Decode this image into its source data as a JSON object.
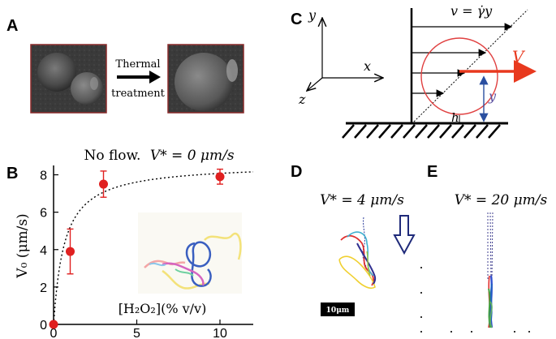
{
  "panels": {
    "a": "A",
    "b": "B",
    "c": "C",
    "d": "D",
    "e": "E"
  },
  "panel_a": {
    "arrow_label_1": "Thermal",
    "arrow_label_2": "treatment"
  },
  "panel_b": {
    "title_text": "No flow.",
    "title_eq": "V* = 0 μm/s",
    "ylabel": "V₀ (μm/s)",
    "xlabel": "[H₂O₂](% v/v)"
  },
  "panel_c": {
    "axis_y": "y",
    "axis_x": "x",
    "axis_z": "z",
    "flow_eq": "v = γ̇y",
    "velocity": "V",
    "height_right": "y",
    "height_gap": "h"
  },
  "panel_d": {
    "title": "V* = 4 μm/s",
    "scalebar": "10μm"
  },
  "panel_e": {
    "title": "V* = 20 μm/s"
  },
  "chart_data": {
    "type": "scatter",
    "title": "No flow. V* = 0 μm/s",
    "xlabel": "[H₂O₂](% v/v)",
    "ylabel": "V₀ (μm/s)",
    "xlim": [
      0,
      12
    ],
    "ylim": [
      0,
      8.5
    ],
    "x_ticks": [
      0,
      5,
      10
    ],
    "y_ticks": [
      0,
      2,
      4,
      6,
      8
    ],
    "points": [
      {
        "x": 0,
        "y": 0,
        "err": 0
      },
      {
        "x": 1,
        "y": 3.9,
        "err": 1.2
      },
      {
        "x": 3,
        "y": 7.5,
        "err": 0.7
      },
      {
        "x": 10,
        "y": 7.9,
        "err": 0.4
      }
    ],
    "fit": {
      "style": "dotted",
      "vmax": 8.6,
      "k": 0.65
    },
    "colors": {
      "points": "#e02020",
      "fit": "#000000"
    }
  },
  "colors": {
    "sphere_outline": "#e04040",
    "velocity_arrow": "#e8391e",
    "height_arrow": "#2a4fa0",
    "flow_arrow_down": "#1f2a7a"
  }
}
